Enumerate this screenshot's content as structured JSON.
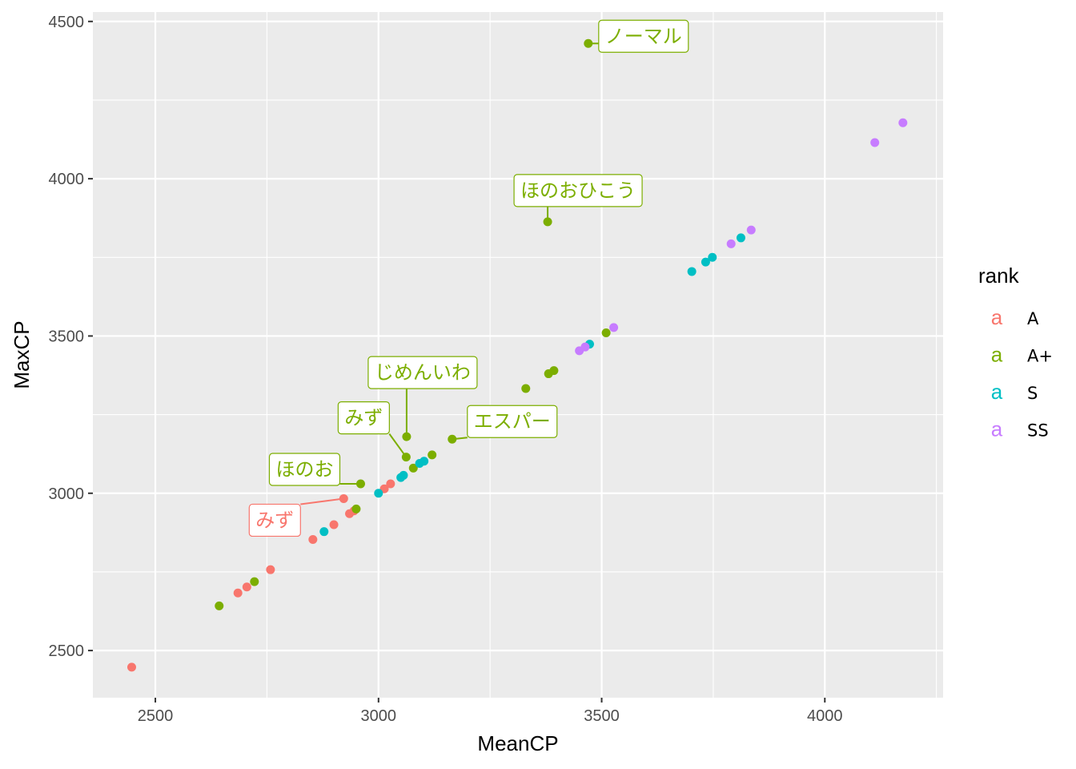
{
  "chart_data": {
    "type": "scatter",
    "xlabel": "MeanCP",
    "ylabel": "MaxCP",
    "xlim": [
      2360,
      4265
    ],
    "ylim": [
      2350,
      4530
    ],
    "x_ticks": [
      2500,
      3000,
      3500,
      4000
    ],
    "y_ticks": [
      2500,
      3000,
      3500,
      4000,
      4500
    ],
    "grid": true,
    "legend": {
      "title": "rank",
      "placement": "right",
      "key_glyph": "a",
      "entries": [
        {
          "label": "A",
          "color": "#F8766D"
        },
        {
          "label": "A+",
          "color": "#7CAE00"
        },
        {
          "label": "S",
          "color": "#00BFC4"
        },
        {
          "label": "SS",
          "color": "#C77CFF"
        }
      ]
    },
    "series": [
      {
        "name": "A",
        "color": "#F8766D",
        "points": [
          [
            2447,
            2447
          ],
          [
            2685,
            2683
          ],
          [
            2705,
            2702
          ],
          [
            2758,
            2757
          ],
          [
            2853,
            2853
          ],
          [
            2900,
            2900
          ],
          [
            2922,
            2983
          ],
          [
            2935,
            2935
          ],
          [
            2945,
            2944
          ],
          [
            3013,
            3014
          ],
          [
            3027,
            3030
          ]
        ]
      },
      {
        "name": "A+",
        "color": "#7CAE00",
        "points": [
          [
            2643,
            2642
          ],
          [
            2722,
            2719
          ],
          [
            2950,
            2950
          ],
          [
            2960,
            3030
          ],
          [
            3062,
            3115
          ],
          [
            3063,
            3180
          ],
          [
            3078,
            3080
          ],
          [
            3120,
            3122
          ],
          [
            3165,
            3172
          ],
          [
            3330,
            3333
          ],
          [
            3379,
            3863
          ],
          [
            3381,
            3380
          ],
          [
            3393,
            3390
          ],
          [
            3470,
            4430
          ],
          [
            3510,
            3510
          ]
        ]
      },
      {
        "name": "S",
        "color": "#00BFC4",
        "points": [
          [
            2878,
            2878
          ],
          [
            3000,
            3000
          ],
          [
            3050,
            3050
          ],
          [
            3056,
            3057
          ],
          [
            3092,
            3095
          ],
          [
            3102,
            3102
          ],
          [
            3473,
            3474
          ],
          [
            3702,
            3705
          ],
          [
            3733,
            3735
          ],
          [
            3748,
            3750
          ],
          [
            3812,
            3812
          ]
        ]
      },
      {
        "name": "SS",
        "color": "#C77CFF",
        "points": [
          [
            3450,
            3453
          ],
          [
            3463,
            3465
          ],
          [
            3527,
            3527
          ],
          [
            3790,
            3793
          ],
          [
            3835,
            3837
          ],
          [
            4112,
            4115
          ],
          [
            4175,
            4178
          ]
        ]
      }
    ],
    "annotations": [
      {
        "text": "ノーマル",
        "color": "#7CAE00",
        "point": [
          3470,
          4430
        ]
      },
      {
        "text": "ほのおひこう",
        "color": "#7CAE00",
        "point": [
          3379,
          3863
        ]
      },
      {
        "text": "じめんいわ",
        "color": "#7CAE00",
        "point": [
          3063,
          3180
        ]
      },
      {
        "text": "みず",
        "color": "#7CAE00",
        "point": [
          3062,
          3115
        ]
      },
      {
        "text": "エスパー",
        "color": "#7CAE00",
        "point": [
          3165,
          3172
        ]
      },
      {
        "text": "ほのお",
        "color": "#7CAE00",
        "point": [
          2960,
          3030
        ]
      },
      {
        "text": "みず",
        "color": "#F8766D",
        "point": [
          2922,
          2983
        ]
      }
    ]
  }
}
